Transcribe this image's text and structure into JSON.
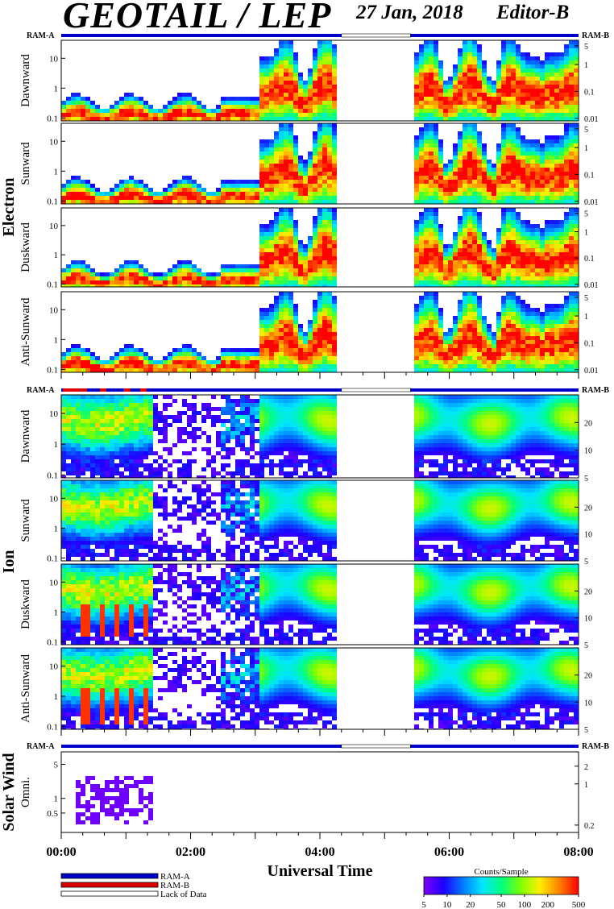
{
  "header": {
    "title": "GEOTAIL / LEP",
    "date": "27 Jan, 2018",
    "editor": "Editor-B"
  },
  "chart_data": {
    "type": "heatmap",
    "x_axis": {
      "title": "Universal Time",
      "range": [
        "00:00",
        "08:00"
      ],
      "tick_labels": [
        "00:00",
        "02:00",
        "04:00",
        "06:00",
        "08:00"
      ]
    },
    "data_gap": {
      "start": "04:20",
      "end": "05:24"
    },
    "ram_labels": {
      "left": "RAM-A",
      "right": "RAM-B"
    },
    "groups": [
      {
        "name": "Electron",
        "left_ticks": [
          "10",
          "1",
          "0.1"
        ],
        "left_range": [
          0.08,
          40
        ],
        "right_ticks": [
          "5",
          "1",
          "0.1",
          "0.01"
        ],
        "right_range": [
          0.008,
          8
        ],
        "panels": [
          {
            "label": "Dawnward"
          },
          {
            "label": "Sunward"
          },
          {
            "label": "Duskward"
          },
          {
            "label": "Anti-Sunward"
          }
        ]
      },
      {
        "name": "Ion",
        "left_ticks": [
          "10",
          "1",
          "0.1"
        ],
        "left_range": [
          0.08,
          40
        ],
        "right_ticks": [
          "20",
          "10",
          "5"
        ],
        "right_range": [
          5,
          40
        ],
        "panels": [
          {
            "label": "Dawnward"
          },
          {
            "label": "Sunward"
          },
          {
            "label": "Duskward"
          },
          {
            "label": "Anti-Sunward"
          }
        ]
      },
      {
        "name": "Solar Wind",
        "left_ticks": [
          "5",
          "1",
          "0.5"
        ],
        "left_range": [
          0.2,
          9
        ],
        "right_ticks": [
          "2",
          "1",
          "0.2"
        ],
        "right_range": [
          0.15,
          3.5
        ],
        "panels": [
          {
            "label": "Omni."
          }
        ]
      }
    ],
    "legend": {
      "items": [
        {
          "label": "RAM-A",
          "color": "#0000c8"
        },
        {
          "label": "RAM-B",
          "color": "#e00000"
        },
        {
          "label": "Lack of Data",
          "color": "#ffffff"
        }
      ]
    },
    "colorbar": {
      "title": "Counts/Sample",
      "tick_labels": [
        "5",
        "10",
        "20",
        "50",
        "100",
        "200",
        "500"
      ],
      "range": [
        5,
        500
      ],
      "scale": "log",
      "colors": [
        "#7f00ff",
        "#1b00ff",
        "#0078ff",
        "#00e6ff",
        "#00ff80",
        "#7fff00",
        "#ffee00",
        "#ff8000",
        "#ff0000"
      ]
    }
  }
}
